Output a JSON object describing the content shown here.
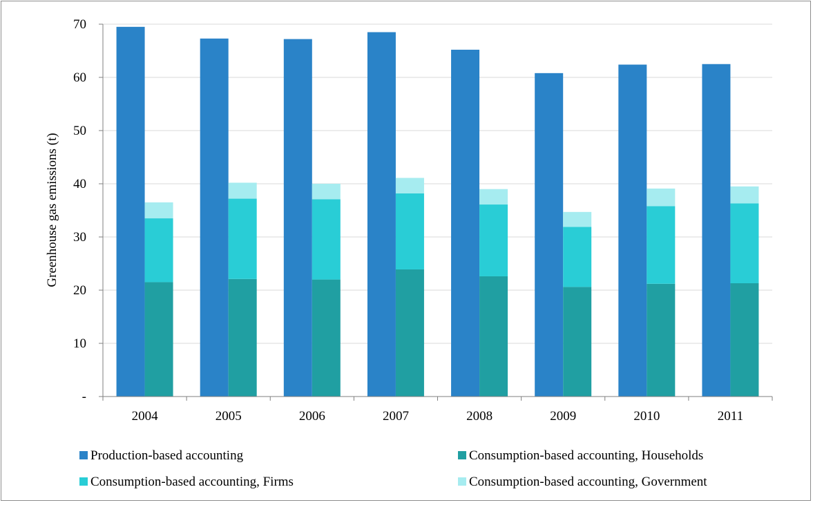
{
  "chart_data": {
    "type": "bar",
    "categories": [
      "2004",
      "2005",
      "2006",
      "2007",
      "2008",
      "2009",
      "2010",
      "2011"
    ],
    "ylabel": "Greenhouse gas emissions (t)",
    "ylim": [
      0,
      70
    ],
    "yticks": [
      {
        "value": 0,
        "label": "-"
      },
      {
        "value": 10,
        "label": "10"
      },
      {
        "value": 20,
        "label": "20"
      },
      {
        "value": 30,
        "label": "30"
      },
      {
        "value": 40,
        "label": "40"
      },
      {
        "value": 50,
        "label": "50"
      },
      {
        "value": 60,
        "label": "60"
      },
      {
        "value": 70,
        "label": "70"
      }
    ],
    "grid": true,
    "legend_position": "bottom",
    "series": [
      {
        "name": "Production-based accounting",
        "color": "#2a83c8",
        "stack": "production",
        "values": [
          69.5,
          67.3,
          67.2,
          68.5,
          65.2,
          60.8,
          62.4,
          62.5
        ]
      },
      {
        "name": "Consumption-based accounting, Households",
        "color": "#209fa2",
        "stack": "consumption",
        "values": [
          21.5,
          22.1,
          22.0,
          23.9,
          22.6,
          20.6,
          21.2,
          21.3
        ]
      },
      {
        "name": "Consumption-based accounting, Firms",
        "color": "#29cdd6",
        "stack": "consumption",
        "values": [
          12.0,
          15.1,
          15.1,
          14.3,
          13.5,
          11.3,
          14.6,
          15.0
        ]
      },
      {
        "name": "Consumption-based accounting, Government",
        "color": "#a6ecf0",
        "stack": "consumption",
        "values": [
          3.0,
          3.0,
          2.9,
          2.9,
          2.9,
          2.8,
          3.3,
          3.2
        ]
      }
    ]
  }
}
